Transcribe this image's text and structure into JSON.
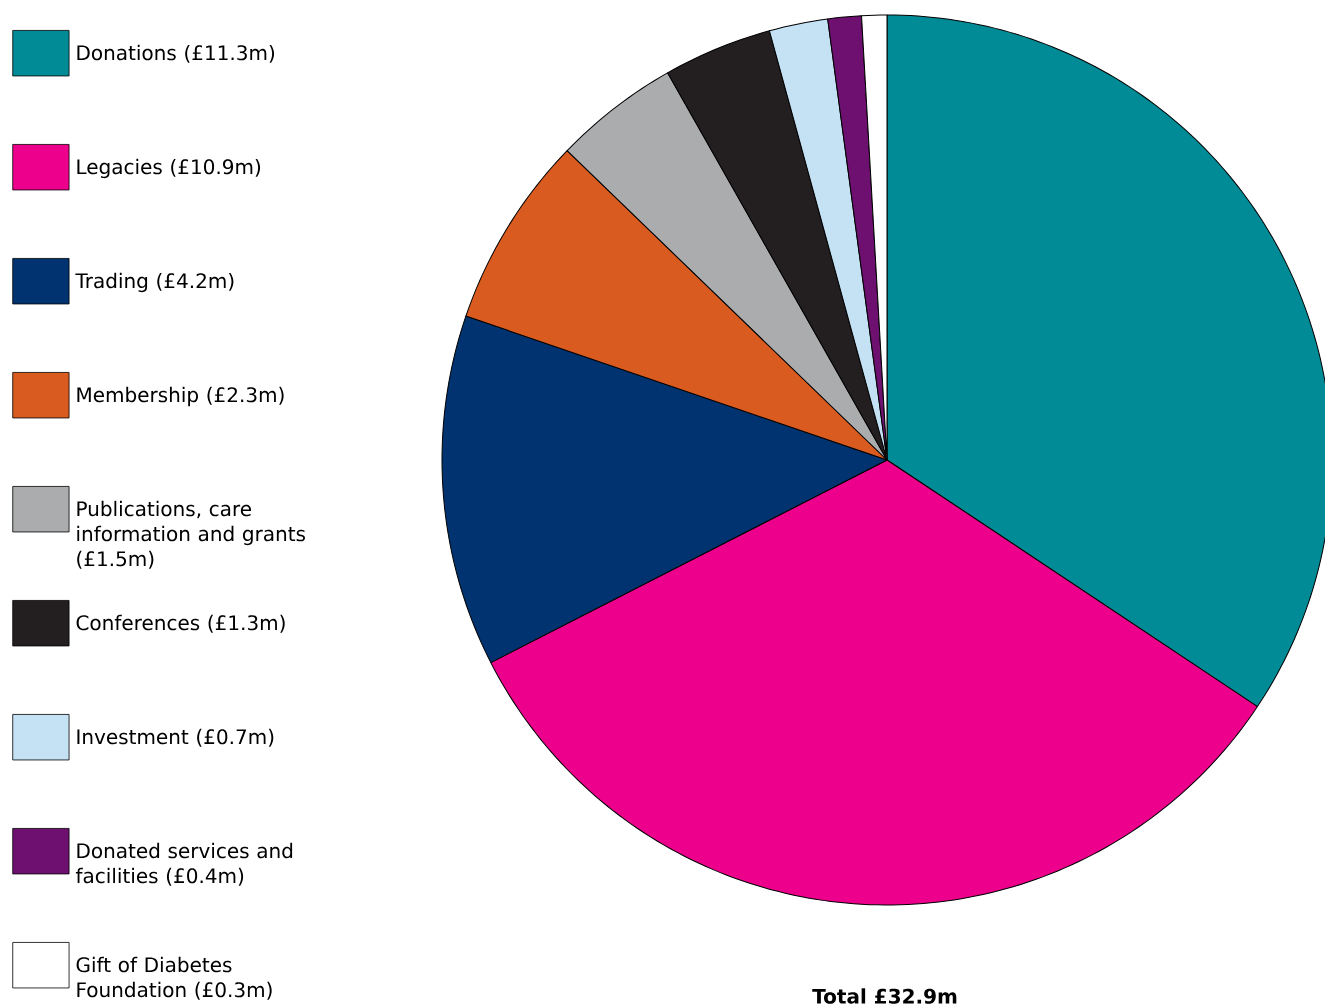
{
  "chart_data": {
    "type": "pie",
    "categories": [
      "Donations (£11.3m)",
      "Legacies (£10.9m)",
      "Trading (£4.2m)",
      "Membership (£2.3m)",
      "Publications, care information and grants (£1.5m)",
      "Conferences (£1.3m)",
      "Investment (£0.7m)",
      "Donated services and facilities (£0.4m)",
      "Gift of Diabetes Foundation (£0.3m)"
    ],
    "values": [
      11.3,
      10.9,
      4.2,
      2.3,
      1.5,
      1.3,
      0.7,
      0.4,
      0.3
    ],
    "colors": [
      "#008b96",
      "#ec008c",
      "#00336f",
      "#d95b20",
      "#abacae",
      "#231f20",
      "#c5e2f5",
      "#6d1070",
      "#ffffff"
    ],
    "legend": "left",
    "annotations": [
      "Total £32.9m"
    ]
  }
}
